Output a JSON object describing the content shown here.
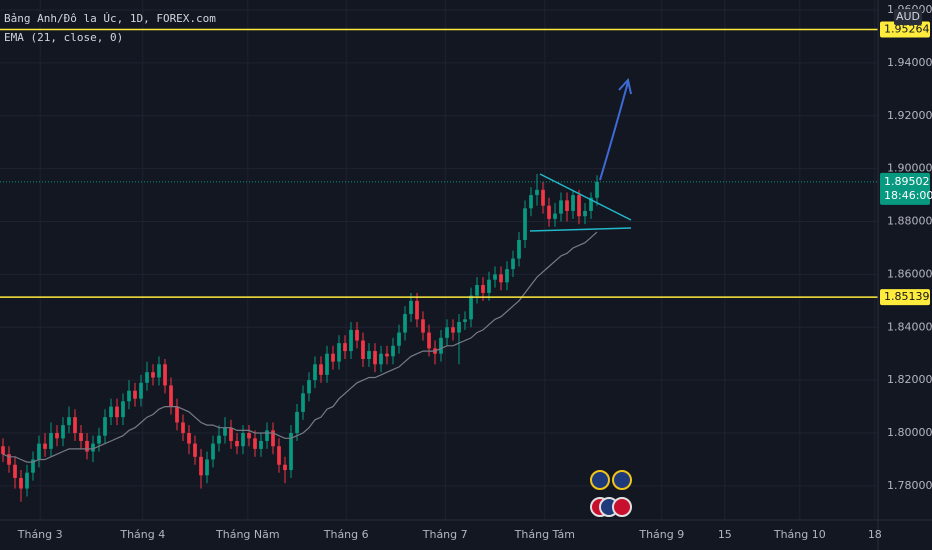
{
  "chart_data": {
    "type": "candlestick",
    "title": "Bảng Anh/Đô la Úc, 1D, FOREX.com",
    "indicator": "EMA (21, close, 0)",
    "currency": "AUD",
    "up_color": "#089981",
    "down_color": "#f23645",
    "ema_color": "#787b86",
    "grid": true,
    "xlim": [
      -0.5,
      145.83
    ],
    "xticks": [
      {
        "value": 6.2,
        "label": "Tháng 3"
      },
      {
        "value": 23.3,
        "label": "Tháng 4"
      },
      {
        "value": 40.8,
        "label": "Tháng Năm"
      },
      {
        "value": 57.2,
        "label": "Tháng 6"
      },
      {
        "value": 73.7,
        "label": "Tháng 7"
      },
      {
        "value": 90.3,
        "label": "Tháng Tám"
      },
      {
        "value": 109.8,
        "label": "Tháng 9"
      },
      {
        "value": 120.3,
        "label": "15"
      },
      {
        "value": 132.8,
        "label": "Tháng 10"
      },
      {
        "value": 145.3,
        "label": "18"
      }
    ],
    "ylim": [
      1.7671,
      1.9638
    ],
    "yticks": [
      {
        "value": 1.78,
        "label": "1.78000"
      },
      {
        "value": 1.8,
        "label": "1.80000"
      },
      {
        "value": 1.82,
        "label": "1.82000"
      },
      {
        "value": 1.84,
        "label": "1.84000"
      },
      {
        "value": 1.86,
        "label": "1.86000"
      },
      {
        "value": 1.88,
        "label": "1.88000"
      },
      {
        "value": 1.9,
        "label": "1.90000"
      },
      {
        "value": 1.92,
        "label": "1.92000"
      },
      {
        "value": 1.94,
        "label": "1.94000"
      },
      {
        "value": 1.96,
        "label": "1.96000"
      }
    ],
    "open": [
      1.795,
      1.792,
      1.788,
      1.783,
      1.779,
      1.785,
      1.79,
      1.796,
      1.794,
      1.8,
      1.798,
      1.803,
      1.806,
      1.8,
      1.797,
      1.793,
      1.796,
      1.799,
      1.806,
      1.81,
      1.806,
      1.812,
      1.816,
      1.813,
      1.819,
      1.823,
      1.821,
      1.826,
      1.818,
      1.81,
      1.804,
      1.8,
      1.796,
      1.791,
      1.784,
      1.79,
      1.796,
      1.799,
      1.802,
      1.797,
      1.795,
      1.8,
      1.798,
      1.794,
      1.797,
      1.801,
      1.795,
      1.788,
      1.786,
      1.8,
      1.808,
      1.815,
      1.82,
      1.826,
      1.822,
      1.83,
      1.827,
      1.834,
      1.831,
      1.839,
      1.835,
      1.828,
      1.831,
      1.826,
      1.83,
      1.829,
      1.833,
      1.838,
      1.845,
      1.85,
      1.843,
      1.838,
      1.832,
      1.83,
      1.836,
      1.84,
      1.838,
      1.842,
      1.843,
      1.852,
      1.856,
      1.853,
      1.858,
      1.86,
      1.857,
      1.862,
      1.866,
      1.873,
      1.885,
      1.89,
      1.892,
      1.886,
      1.881,
      1.883,
      1.888,
      1.884,
      1.89,
      1.882,
      1.884,
      1.889
    ],
    "high": [
      1.798,
      1.795,
      1.791,
      1.786,
      1.788,
      1.793,
      1.799,
      1.8,
      1.804,
      1.803,
      1.806,
      1.81,
      1.809,
      1.803,
      1.8,
      1.799,
      1.802,
      1.809,
      1.813,
      1.813,
      1.815,
      1.82,
      1.819,
      1.822,
      1.827,
      1.826,
      1.829,
      1.828,
      1.821,
      1.813,
      1.807,
      1.803,
      1.799,
      1.794,
      1.793,
      1.799,
      1.803,
      1.806,
      1.805,
      1.8,
      1.803,
      1.803,
      1.801,
      1.8,
      1.804,
      1.804,
      1.798,
      1.791,
      1.803,
      1.811,
      1.818,
      1.823,
      1.829,
      1.829,
      1.833,
      1.833,
      1.837,
      1.837,
      1.842,
      1.842,
      1.838,
      1.834,
      1.834,
      1.833,
      1.833,
      1.836,
      1.841,
      1.848,
      1.853,
      1.853,
      1.846,
      1.841,
      1.835,
      1.839,
      1.843,
      1.843,
      1.845,
      1.846,
      1.855,
      1.859,
      1.859,
      1.861,
      1.863,
      1.863,
      1.865,
      1.869,
      1.876,
      1.888,
      1.893,
      1.898,
      1.895,
      1.889,
      1.887,
      1.891,
      1.891,
      1.892,
      1.892,
      1.887,
      1.891,
      1.8975
    ],
    "low": [
      1.789,
      1.785,
      1.779,
      1.774,
      1.776,
      1.782,
      1.787,
      1.791,
      1.791,
      1.795,
      1.795,
      1.8,
      1.797,
      1.794,
      1.79,
      1.789,
      1.793,
      1.796,
      1.803,
      1.803,
      1.803,
      1.809,
      1.81,
      1.81,
      1.816,
      1.818,
      1.818,
      1.815,
      1.807,
      1.801,
      1.797,
      1.792,
      1.788,
      1.779,
      1.781,
      1.787,
      1.793,
      1.796,
      1.794,
      1.792,
      1.792,
      1.795,
      1.791,
      1.791,
      1.794,
      1.792,
      1.785,
      1.781,
      1.783,
      1.797,
      1.805,
      1.812,
      1.817,
      1.819,
      1.819,
      1.824,
      1.824,
      1.828,
      1.828,
      1.832,
      1.825,
      1.825,
      1.823,
      1.823,
      1.826,
      1.826,
      1.83,
      1.835,
      1.842,
      1.84,
      1.835,
      1.829,
      1.826,
      1.827,
      1.833,
      1.835,
      1.826,
      1.839,
      1.84,
      1.849,
      1.85,
      1.85,
      1.855,
      1.854,
      1.854,
      1.859,
      1.863,
      1.87,
      1.882,
      1.886,
      1.883,
      1.878,
      1.878,
      1.88,
      1.88,
      1.881,
      1.879,
      1.879,
      1.881,
      1.886
    ],
    "close": [
      1.792,
      1.788,
      1.783,
      1.779,
      1.785,
      1.79,
      1.796,
      1.794,
      1.8,
      1.798,
      1.803,
      1.806,
      1.8,
      1.797,
      1.793,
      1.796,
      1.799,
      1.806,
      1.81,
      1.806,
      1.812,
      1.816,
      1.813,
      1.819,
      1.823,
      1.821,
      1.826,
      1.818,
      1.81,
      1.804,
      1.8,
      1.796,
      1.791,
      1.784,
      1.79,
      1.796,
      1.799,
      1.802,
      1.797,
      1.795,
      1.8,
      1.798,
      1.794,
      1.797,
      1.801,
      1.795,
      1.788,
      1.786,
      1.8,
      1.808,
      1.815,
      1.82,
      1.826,
      1.822,
      1.83,
      1.827,
      1.834,
      1.831,
      1.839,
      1.835,
      1.828,
      1.831,
      1.826,
      1.83,
      1.829,
      1.833,
      1.838,
      1.845,
      1.85,
      1.843,
      1.838,
      1.832,
      1.83,
      1.836,
      1.84,
      1.838,
      1.842,
      1.843,
      1.852,
      1.856,
      1.853,
      1.858,
      1.86,
      1.857,
      1.862,
      1.866,
      1.873,
      1.885,
      1.89,
      1.892,
      1.886,
      1.881,
      1.883,
      1.888,
      1.884,
      1.89,
      1.882,
      1.884,
      1.889,
      1.89502
    ],
    "ema": [
      1.792,
      1.791,
      1.791,
      1.79,
      1.789,
      1.789,
      1.79,
      1.79,
      1.791,
      1.792,
      1.793,
      1.794,
      1.794,
      1.794,
      1.794,
      1.794,
      1.795,
      1.796,
      1.797,
      1.798,
      1.799,
      1.801,
      1.802,
      1.804,
      1.806,
      1.807,
      1.809,
      1.81,
      1.81,
      1.81,
      1.809,
      1.808,
      1.806,
      1.804,
      1.803,
      1.803,
      1.802,
      1.802,
      1.802,
      1.801,
      1.801,
      1.801,
      1.8,
      1.8,
      1.8,
      1.8,
      1.799,
      1.798,
      1.798,
      1.799,
      1.8,
      1.802,
      1.805,
      1.806,
      1.809,
      1.81,
      1.813,
      1.815,
      1.817,
      1.819,
      1.82,
      1.821,
      1.821,
      1.822,
      1.823,
      1.824,
      1.825,
      1.827,
      1.829,
      1.83,
      1.831,
      1.831,
      1.831,
      1.832,
      1.833,
      1.833,
      1.834,
      1.835,
      1.836,
      1.838,
      1.839,
      1.841,
      1.843,
      1.844,
      1.846,
      1.848,
      1.85,
      1.853,
      1.856,
      1.859,
      1.861,
      1.863,
      1.865,
      1.867,
      1.868,
      1.87,
      1.871,
      1.872,
      1.874,
      1.876
    ],
    "price_lines": [
      {
        "value": 1.95264,
        "color": "#ffeb3b"
      },
      {
        "value": 1.85139,
        "color": "#ffeb3b"
      }
    ],
    "last_price": 1.89502,
    "countdown": "18:46:00"
  }
}
